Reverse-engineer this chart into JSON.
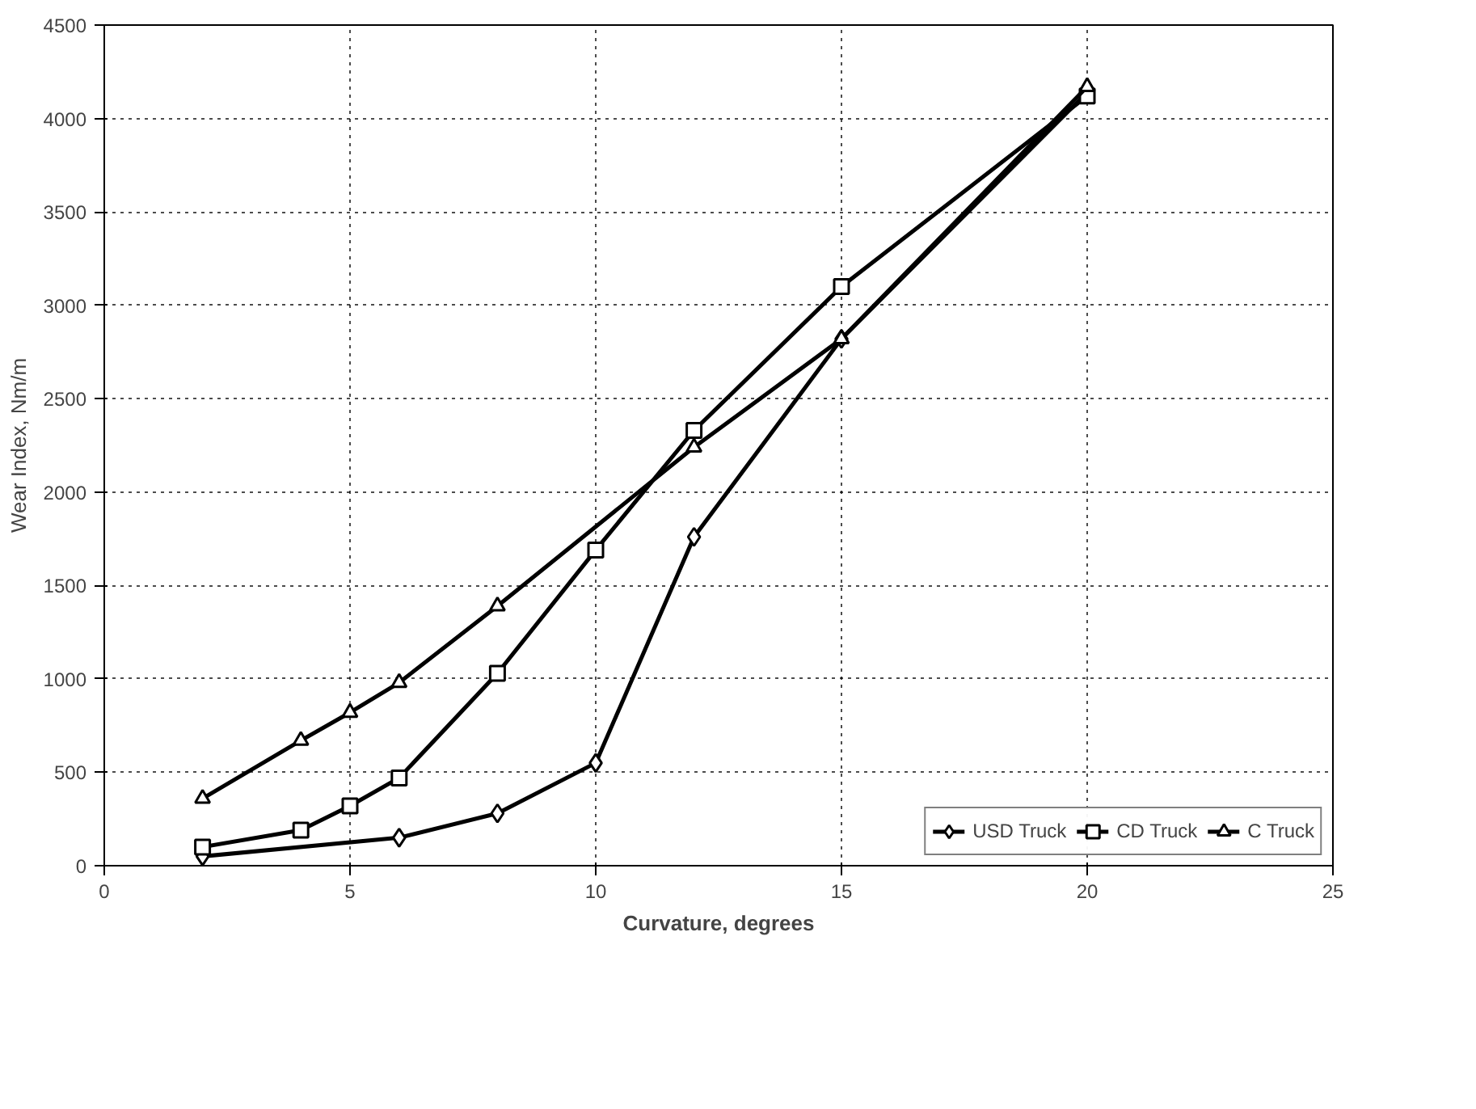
{
  "chart_data": {
    "type": "line",
    "xlabel": "Curvature, degrees",
    "ylabel": "Wear Index, Nm/m",
    "xlim": [
      0,
      25
    ],
    "xticks": [
      0,
      5,
      10,
      15,
      20,
      25
    ],
    "ylim": [
      0,
      4500
    ],
    "yticks": [
      0,
      500,
      1000,
      1500,
      2000,
      2500,
      3000,
      3500,
      4000,
      4500
    ],
    "grid": true,
    "legend": "bottom right",
    "line_style": "solid",
    "series": [
      {
        "name": "USD Truck",
        "color": "#000000",
        "marker": "diamond",
        "x": [
          2,
          6,
          8,
          10,
          12,
          15,
          20
        ],
        "values": [
          50,
          150,
          280,
          550,
          1760,
          2820,
          4140
        ]
      },
      {
        "name": "CD Truck",
        "color": "#000000",
        "marker": "square",
        "x": [
          2,
          4,
          5,
          6,
          8,
          10,
          12,
          15,
          20
        ],
        "values": [
          100,
          190,
          320,
          470,
          1030,
          1690,
          2330,
          3100,
          4120
        ]
      },
      {
        "name": "C Truck",
        "color": "#000000",
        "marker": "triangle",
        "x": [
          2,
          4,
          5,
          6,
          8,
          12,
          15,
          20
        ],
        "values": [
          360,
          670,
          820,
          980,
          1390,
          2240,
          2820,
          4170
        ]
      }
    ]
  }
}
